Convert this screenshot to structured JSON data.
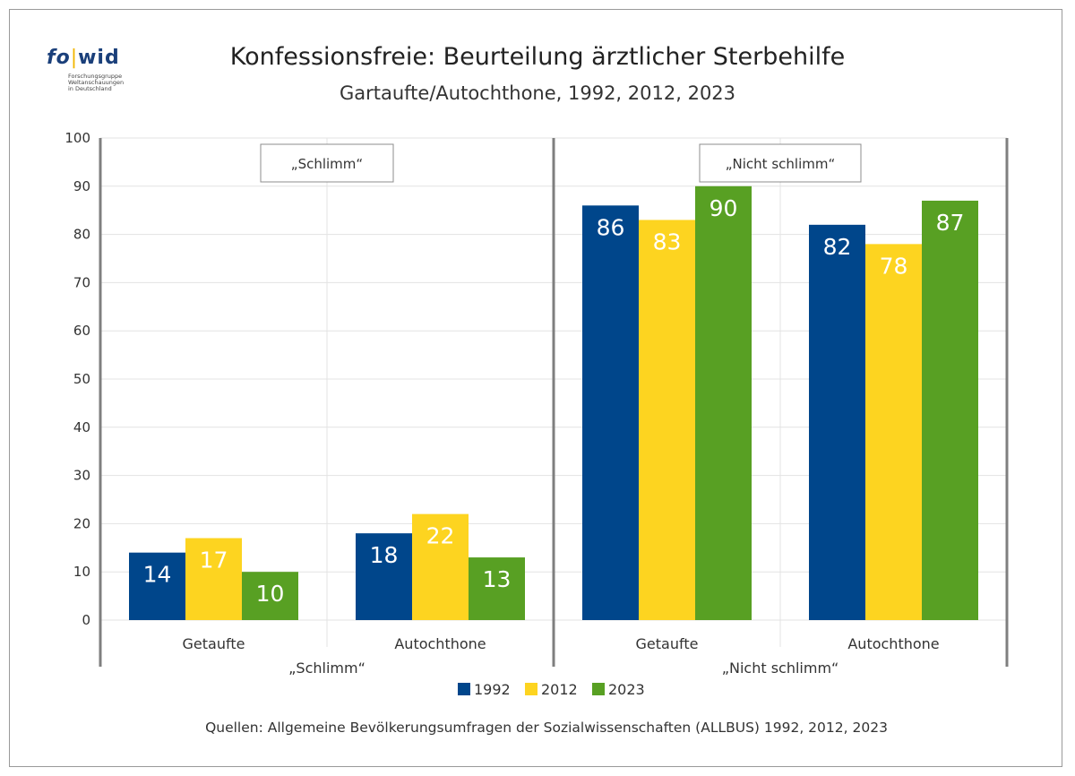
{
  "title": "Konfessionsfreie: Beurteilung ärztlicher Sterbehilfe",
  "subtitle": "Gartaufte/Autochthone, 1992, 2012, 2023",
  "source": "Quellen: Allgemeine Bevölkerungsumfragen der Sozialwissenschaften (ALLBUS) 1992, 2012, 2023",
  "logo": {
    "mark_left": "fo",
    "mark_right": "wid",
    "lines": [
      "Forschungsgruppe",
      "Weltanschauungen",
      "in Deutschland"
    ]
  },
  "colors": {
    "1992": "#00468b",
    "2012": "#fdd420",
    "2023": "#58a023",
    "grid": "#e3e3e3",
    "divider": "#7f7f7f"
  },
  "chart_data": {
    "type": "bar",
    "ylim": [
      0,
      100
    ],
    "yticks": [
      0,
      10,
      20,
      30,
      40,
      50,
      60,
      70,
      80,
      90,
      100
    ],
    "legend_position": "bottom",
    "groups": [
      {
        "label": "„Schlimm“",
        "box_label": "„Schlimm“",
        "categories": [
          {
            "label": "Getaufte",
            "values": [
              14,
              17,
              10
            ]
          },
          {
            "label": "Autochthone",
            "values": [
              18,
              22,
              13
            ]
          }
        ]
      },
      {
        "label": "„Nicht schlimm“",
        "box_label": "„Nicht schlimm“",
        "categories": [
          {
            "label": "Getaufte",
            "values": [
              86,
              83,
              90
            ]
          },
          {
            "label": "Autochthone",
            "values": [
              82,
              78,
              87
            ]
          }
        ]
      }
    ],
    "series": [
      {
        "name": "1992",
        "color": "#00468b",
        "label_color": "#ffffff"
      },
      {
        "name": "2012",
        "color": "#fdd420",
        "label_color": "#ffffff"
      },
      {
        "name": "2023",
        "color": "#58a023",
        "label_color": "#ffffff"
      }
    ]
  }
}
